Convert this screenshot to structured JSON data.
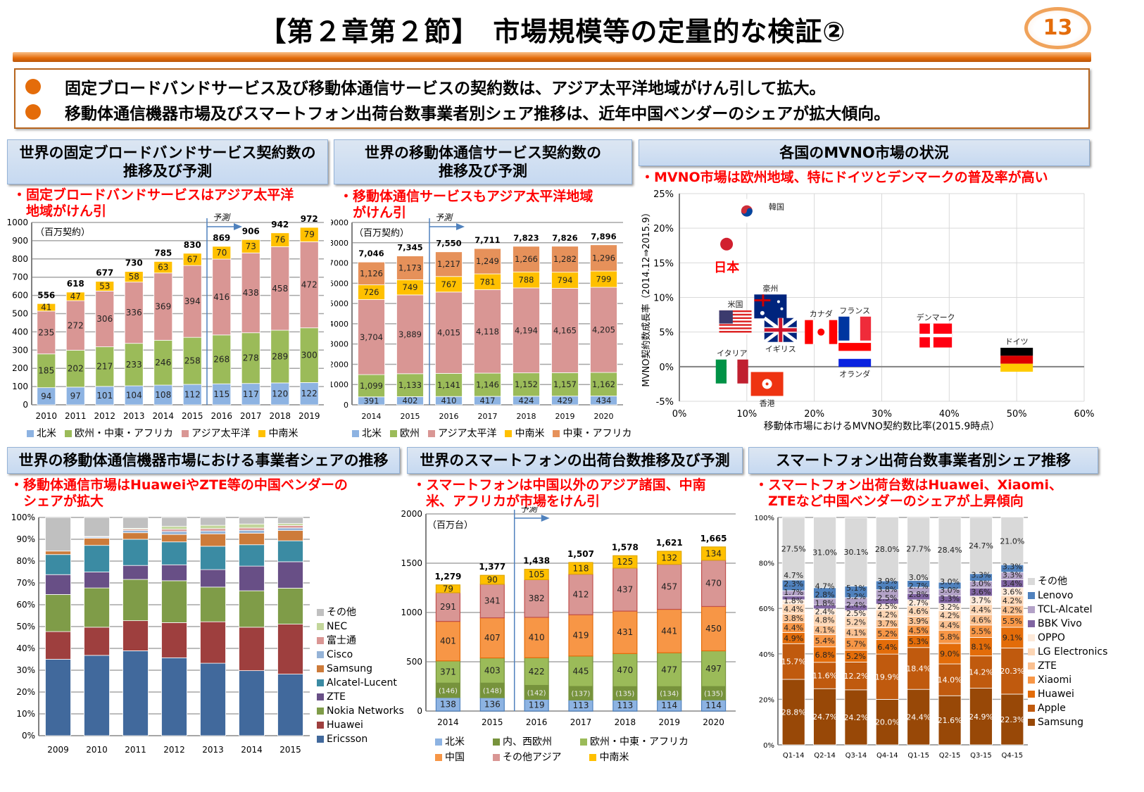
{
  "header": {
    "title": "【第２章第２節】　市場規模等の定量的な検証②",
    "page_number": "13"
  },
  "summary": {
    "bullets": [
      "固定ブロードバンドサービス及び移動体通信サービスの契約数は、アジア太平洋地域がけん引して拡大。",
      "移動体通信機器市場及びスマートフォン出荷台数事業者別シェア推移は、近年中国ベンダーのシェアが拡大傾向。"
    ]
  },
  "panels": {
    "broadband": {
      "title": "世界の固定ブロードバンドサービス契約数の\n推移及び予測",
      "note": "・固定ブロードバンドサービスはアジア太平洋\n　地域がけん引",
      "unit": "（百万契約）",
      "forecast": "予測"
    },
    "mobile": {
      "title": "世界の移動体通信サービス契約数の\n推移及び予測",
      "note": "・移動体通信サービスもアジア太平洋地域\n　がけん引",
      "unit": "（百万契約）",
      "forecast": "予測"
    },
    "mvno": {
      "title": "各国のMVNO市場の状況",
      "note": "・MVNO市場は欧州地域、特にドイツとデンマークの普及率が高い"
    },
    "equipment": {
      "title": "世界の移動体通信機器市場における事業者シェアの推移",
      "note": "・移動体通信市場はHuaweiやZTE等の中国ベンダーの\n　シェアが拡大"
    },
    "shipments": {
      "title": "世界のスマートフォンの出荷台数推移及び予測",
      "note": "・スマートフォンは中国以外のアジア諸国、中南\n　米、アフリカが市場をけん引",
      "unit": "（百万台）",
      "forecast": "予測"
    },
    "vendor_share": {
      "title": "スマートフォン出荷台数事業者別シェア推移",
      "note": "・スマートフォン出荷台数はHuawei、Xiaomi、\n　ZTEなど中国ベンダーのシェアが上昇傾向"
    }
  },
  "chart_data": [
    {
      "id": "broadband",
      "type": "bar",
      "stacked": true,
      "title": "世界の固定ブロードバンドサービス契約数の推移及び予測",
      "ylabel": "（百万契約）",
      "ylim": [
        0,
        1000
      ],
      "tick_step": 100,
      "forecast_from": "2016",
      "categories": [
        "2010",
        "2011",
        "2012",
        "2013",
        "2014",
        "2015",
        "2016",
        "2017",
        "2018",
        "2019"
      ],
      "series": [
        {
          "name": "北米",
          "color": "#8db3e2",
          "values": [
            94,
            97,
            101,
            104,
            108,
            112,
            115,
            117,
            120,
            122
          ]
        },
        {
          "name": "欧州・中東・アフリカ",
          "color": "#9bbb59",
          "values": [
            185,
            202,
            217,
            233,
            246,
            258,
            268,
            278,
            289,
            300
          ]
        },
        {
          "name": "アジア太平洋",
          "color": "#d99694",
          "values": [
            235,
            272,
            306,
            336,
            369,
            394,
            416,
            438,
            458,
            472
          ]
        },
        {
          "name": "中南米",
          "color": "#ffc000",
          "values": [
            41,
            47,
            53,
            58,
            63,
            67,
            70,
            73,
            76,
            79
          ]
        }
      ],
      "totals": [
        556,
        618,
        677,
        730,
        785,
        830,
        869,
        906,
        942,
        972
      ]
    },
    {
      "id": "mobile",
      "type": "bar",
      "stacked": true,
      "title": "世界の移動体通信サービス契約数の推移及び予測",
      "ylabel": "（百万契約）",
      "ylim": [
        0,
        9000
      ],
      "tick_step": 1000,
      "forecast_from": "2016",
      "categories": [
        "2014",
        "2015",
        "2016",
        "2017",
        "2018",
        "2019",
        "2020"
      ],
      "series": [
        {
          "name": "北米",
          "color": "#8db3e2",
          "values": [
            391,
            402,
            410,
            417,
            424,
            429,
            434
          ]
        },
        {
          "name": "欧州",
          "color": "#9bbb59",
          "values": [
            1099,
            1133,
            1141,
            1146,
            1152,
            1157,
            1162
          ]
        },
        {
          "name": "アジア太平洋",
          "color": "#d99694",
          "values": [
            3704,
            3889,
            4015,
            4118,
            4194,
            4165,
            4205
          ]
        },
        {
          "name": "中南米",
          "color": "#ffc000",
          "values": [
            726,
            749,
            767,
            781,
            788,
            794,
            799
          ]
        },
        {
          "name": "中東・アフリカ",
          "color": "#e6915a",
          "values": [
            1126,
            1173,
            1217,
            1249,
            1266,
            1282,
            1296
          ]
        }
      ],
      "totals": [
        7046,
        7345,
        7550,
        7711,
        7823,
        7826,
        7896
      ]
    },
    {
      "id": "mvno",
      "type": "scatter",
      "title": "各国のMVNO市場の状況",
      "xlabel": "移動体市場におけるMVNO契約数比率(2015.9時点）",
      "ylabel": "MVNO契約数成長率（2014.12⇒2015.9）",
      "xlim": [
        0,
        60
      ],
      "x_step": 10,
      "ylim": [
        -5,
        25
      ],
      "y_step": 5,
      "points": [
        {
          "name": "韓国",
          "x": 10,
          "y": 22.5,
          "flag": "korea",
          "label_side": "right"
        },
        {
          "name": "日本",
          "x": 7,
          "y": 17.7,
          "flag": "japan",
          "label_side": "below",
          "highlight": true
        },
        {
          "name": "米国",
          "x": 8.3,
          "y": 6.4,
          "flag": "us",
          "label_side": "above"
        },
        {
          "name": "豪州",
          "x": 13.5,
          "y": 8.7,
          "flag": "australia",
          "label_side": "above"
        },
        {
          "name": "イギリス",
          "x": 15,
          "y": 5.3,
          "flag": "uk",
          "label_side": "below"
        },
        {
          "name": "カナダ",
          "x": 21,
          "y": 5,
          "flag": "canada",
          "label_side": "above"
        },
        {
          "name": "フランス",
          "x": 26,
          "y": 5.5,
          "flag": "france",
          "label_side": "above"
        },
        {
          "name": "オランダ",
          "x": 26,
          "y": 1.7,
          "flag": "netherlands",
          "label_side": "below"
        },
        {
          "name": "デンマーク",
          "x": 38,
          "y": 4.5,
          "flag": "denmark",
          "label_side": "above"
        },
        {
          "name": "ドイツ",
          "x": 50,
          "y": 1,
          "flag": "germany",
          "label_side": "above"
        },
        {
          "name": "イタリア",
          "x": 7.8,
          "y": -0.7,
          "flag": "italy",
          "label_side": "above"
        },
        {
          "name": "香港",
          "x": 13,
          "y": -2.5,
          "flag": "hongkong",
          "label_side": "below"
        }
      ]
    },
    {
      "id": "equipment",
      "type": "bar",
      "stacked": true,
      "percent": true,
      "title": "世界の移動体通信機器市場における事業者シェアの推移",
      "ylim": [
        0,
        100
      ],
      "tick_step": 10,
      "categories": [
        "2009",
        "2010",
        "2011",
        "2012",
        "2013",
        "2014",
        "2015"
      ],
      "series": [
        {
          "name": "Ericsson",
          "color": "#41699c",
          "values": [
            35,
            36.8,
            38.9,
            35.7,
            33.2,
            29.8,
            28.2
          ]
        },
        {
          "name": "Huawei",
          "color": "#9e3f3e",
          "values": [
            12.7,
            12.9,
            13.8,
            16.1,
            19,
            19.9,
            22.9
          ]
        },
        {
          "name": "Nokia Networks",
          "color": "#7f9c48",
          "values": [
            17,
            18,
            18.9,
            19.2,
            15.9,
            16.7,
            16.5
          ]
        },
        {
          "name": "ZTE",
          "color": "#684f86",
          "values": [
            9.1,
            7.3,
            6.4,
            7.3,
            8,
            11.3,
            12.1
          ]
        },
        {
          "name": "Alcatel-Lucent",
          "color": "#3b8ba3",
          "values": [
            9.2,
            12.2,
            12,
            10.5,
            10.7,
            9.8,
            9.6
          ]
        },
        {
          "name": "Samsung",
          "color": "#cd7b3a",
          "values": [
            1.6,
            3.3,
            3,
            3.4,
            5.7,
            5.3,
            4.7
          ]
        },
        {
          "name": "Cisco",
          "color": "#95b3d7",
          "values": [
            0,
            0.5,
            1,
            1.4,
            1.3,
            1.3,
            1.2
          ]
        },
        {
          "name": "富士通",
          "color": "#da9694",
          "values": [
            0,
            0.3,
            0.6,
            1,
            1.1,
            1.1,
            1.1
          ]
        },
        {
          "name": "NEC",
          "color": "#c3d69b",
          "values": [
            0,
            0,
            0.4,
            1.3,
            1.5,
            1.8,
            0.9
          ]
        },
        {
          "name": "その他",
          "color": "#c0c0c0",
          "values": [
            15.4,
            8.7,
            5,
            4.1,
            3.6,
            3,
            2.8
          ]
        }
      ]
    },
    {
      "id": "shipments",
      "type": "bar",
      "stacked": true,
      "title": "世界のスマートフォンの出荷台数推移及び予測",
      "ylabel": "（百万台）",
      "ylim": [
        0,
        2000
      ],
      "tick_step": 500,
      "forecast_from": "2016",
      "categories": [
        "2014",
        "2015",
        "2016",
        "2017",
        "2018",
        "2019",
        "2020"
      ],
      "series": [
        {
          "name": "北米",
          "color": "#8db3e2",
          "stroke": "#4f81bd",
          "values": [
            138,
            136,
            119,
            113,
            113,
            114,
            114
          ]
        },
        {
          "name": "欧州・中東・アフリカ",
          "color": "#9bbb59",
          "stroke": "#77933c",
          "values": [
            371,
            403,
            422,
            445,
            470,
            477,
            497
          ],
          "inner": {
            "name": "内、西欧州",
            "color": "#77933c",
            "values": [
              146,
              148,
              142,
              137,
              135,
              134,
              135
            ]
          }
        },
        {
          "name": "中国",
          "color": "#f79646",
          "stroke": "#e46c0a",
          "values": [
            401,
            407,
            410,
            419,
            431,
            441,
            450
          ]
        },
        {
          "name": "その他アジア",
          "color": "#d99694",
          "stroke": "#c0504d",
          "values": [
            291,
            341,
            382,
            412,
            437,
            457,
            470
          ]
        },
        {
          "name": "中南米",
          "color": "#ffc000",
          "stroke": "#e0a800",
          "values": [
            79,
            90,
            105,
            118,
            125,
            132,
            134
          ]
        }
      ],
      "totals": [
        1279,
        1377,
        1438,
        1507,
        1578,
        1621,
        1665
      ]
    },
    {
      "id": "vendor_share",
      "type": "bar",
      "stacked": true,
      "percent": true,
      "title": "スマートフォン出荷台数事業者別シェア推移",
      "ylim": [
        0,
        100
      ],
      "tick_step": 20,
      "categories": [
        "Q1-14",
        "Q2-14",
        "Q3-14",
        "Q4-14",
        "Q1-15",
        "Q2-15",
        "Q3-15",
        "Q4-15"
      ],
      "series": [
        {
          "name": "Samsung",
          "color": "#984807",
          "light": true,
          "values": [
            28.8,
            24.7,
            24.2,
            20.0,
            24.4,
            21.6,
            24.9,
            22.3
          ]
        },
        {
          "name": "Apple",
          "color": "#c05a0e",
          "light": true,
          "values": [
            15.7,
            11.6,
            12.2,
            19.9,
            18.4,
            14.0,
            14.2,
            20.3
          ]
        },
        {
          "name": "Huawei",
          "color": "#e36c09",
          "values": [
            4.9,
            6.8,
            5.2,
            6.4,
            5.3,
            9.0,
            8.1,
            9.1
          ]
        },
        {
          "name": "Xiaomi",
          "color": "#f79646",
          "values": [
            4.4,
            5.4,
            5.7,
            5.2,
            4.5,
            5.8,
            5.5,
            5.5
          ]
        },
        {
          "name": "ZTE",
          "color": "#fac090",
          "values": [
            3.8,
            4.1,
            4.1,
            3.7,
            3.9,
            4.4,
            4.6,
            4.2
          ]
        },
        {
          "name": "LG Electronics",
          "color": "#fcd5b4",
          "values": [
            4.4,
            4.8,
            5.2,
            4.2,
            4.6,
            4.2,
            4.4,
            4.2
          ]
        },
        {
          "name": "OPPO",
          "color": "#fde9d9",
          "values": [
            1.8,
            2.4,
            2.5,
            2.5,
            2.7,
            3.2,
            3.7,
            3.6
          ]
        },
        {
          "name": "BBK Vivo",
          "color": "#8064a2",
          "values": [
            1.7,
            1.8,
            2.4,
            2.5,
            2.8,
            3.3,
            3.6,
            3.4
          ]
        },
        {
          "name": "TCL-Alcatel",
          "color": "#b3a2c7",
          "values": [
            2.3,
            2.8,
            3.2,
            3.8,
            2.7,
            3.0,
            3.0,
            3.3
          ]
        },
        {
          "name": "Lenovo",
          "color": "#4f81bd",
          "values": [
            4.7,
            4.7,
            5.1,
            3.9,
            3.0,
            3.0,
            3.3,
            3.3
          ]
        },
        {
          "name": "その他",
          "color": "#d9d9d9",
          "values": [
            27.5,
            31.0,
            30.1,
            28.0,
            27.7,
            28.4,
            24.7,
            21.0
          ]
        }
      ]
    }
  ]
}
